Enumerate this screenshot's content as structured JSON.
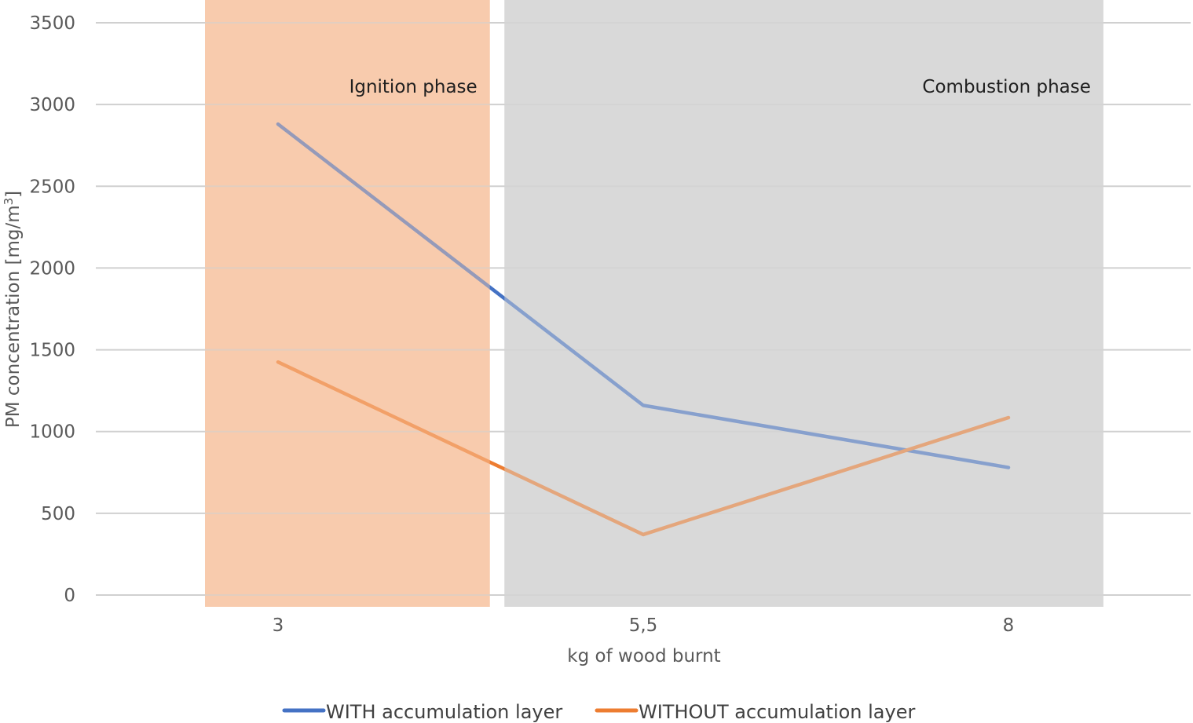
{
  "chart_data": {
    "type": "line",
    "title": "",
    "xlabel": "kg of wood burnt",
    "ylabel": "PM concentration [mg/m",
    "ylabel_superscript": "3",
    "ylabel_suffix": "]",
    "categories": [
      "3",
      "5,5",
      "8"
    ],
    "y_ticks": [
      "0",
      "500",
      "1000",
      "1500",
      "2000",
      "2500",
      "3000",
      "3500"
    ],
    "ylim": [
      0,
      3500
    ],
    "grid": true,
    "legend_position": "bottom",
    "series": [
      {
        "name": "WITH accumulation layer",
        "color": "#4472C4",
        "values": [
          2880,
          1160,
          780
        ]
      },
      {
        "name": "WITHOUT accumulation layer",
        "color": "#ED7D31",
        "values": [
          1425,
          370,
          1085
        ]
      }
    ],
    "annotations": [
      {
        "label": "Ignition phase",
        "x_range": [
          "2.5",
          "4.45"
        ],
        "color": "#F8CBAD"
      },
      {
        "label": "Combustion phase",
        "x_range": [
          "4.55",
          "8.65"
        ],
        "color": "#D9D9D9"
      }
    ]
  }
}
